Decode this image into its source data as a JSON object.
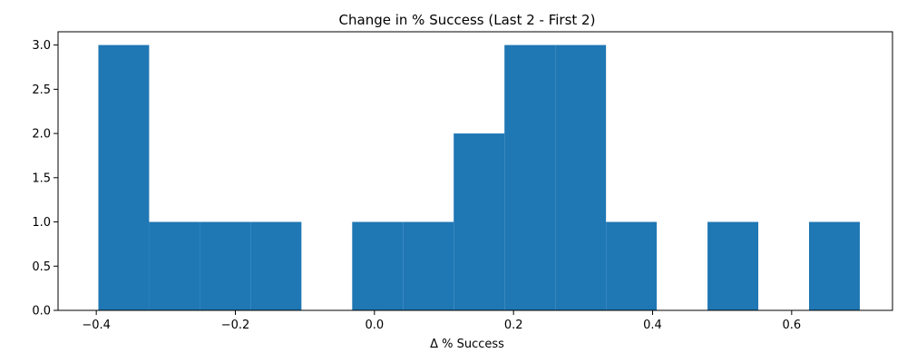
{
  "chart_data": {
    "type": "bar",
    "title": "Change in % Success (Last 2 - First 2)",
    "xlabel": "Δ % Success",
    "ylabel": "",
    "xlim": [
      -0.455,
      0.745
    ],
    "ylim": [
      0,
      3.15
    ],
    "bin_edges": [
      -0.397,
      -0.324,
      -0.251,
      -0.178,
      -0.105,
      -0.032,
      0.041,
      0.114,
      0.187,
      0.26,
      0.333,
      0.406,
      0.479,
      0.552,
      0.625,
      0.698
    ],
    "counts": [
      3,
      1,
      1,
      1,
      0,
      1,
      1,
      2,
      3,
      3,
      1,
      0,
      1,
      0,
      1
    ],
    "xticks": [
      -0.4,
      -0.2,
      0.0,
      0.2,
      0.4,
      0.6
    ],
    "xtick_labels": [
      "−0.4",
      "−0.2",
      "0.0",
      "0.2",
      "0.4",
      "0.6"
    ],
    "yticks": [
      0,
      0.5,
      1,
      1.5,
      2,
      2.5,
      3
    ],
    "ytick_labels": [
      "0.0",
      "0.5",
      "1.0",
      "1.5",
      "2.0",
      "2.5",
      "3.0"
    ],
    "bar_color": "#1f77b4",
    "grid": false,
    "legend": "none"
  }
}
